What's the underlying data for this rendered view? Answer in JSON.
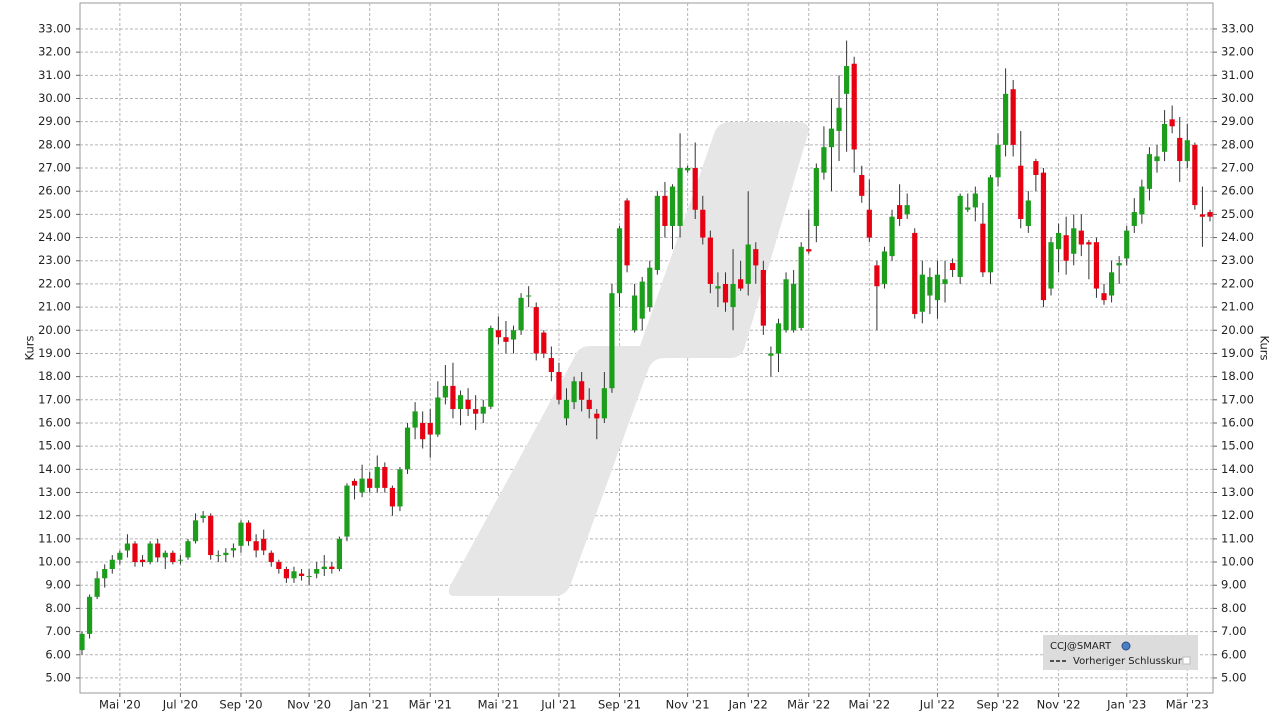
{
  "chart_data": {
    "type": "candlestick",
    "y_label": "Kurs",
    "reference_line_label": "Vorheriger Schlusskurs",
    "grid": true,
    "ylim": [
      4.35,
      34.12
    ],
    "yticks": [
      {
        "value": 5,
        "label": "5.00"
      },
      {
        "value": 6,
        "label": "6.00"
      },
      {
        "value": 7,
        "label": "7.00"
      },
      {
        "value": 8,
        "label": "8.00"
      },
      {
        "value": 9,
        "label": "9.00"
      },
      {
        "value": 10,
        "label": "10.00"
      },
      {
        "value": 11,
        "label": "11.00"
      },
      {
        "value": 12,
        "label": "12.00"
      },
      {
        "value": 13,
        "label": "13.00"
      },
      {
        "value": 14,
        "label": "14.00"
      },
      {
        "value": 15,
        "label": "15.00"
      },
      {
        "value": 16,
        "label": "16.00"
      },
      {
        "value": 17,
        "label": "17.00"
      },
      {
        "value": 18,
        "label": "18.00"
      },
      {
        "value": 19,
        "label": "19.00"
      },
      {
        "value": 20,
        "label": "20.00"
      },
      {
        "value": 21,
        "label": "21.00"
      },
      {
        "value": 22,
        "label": "22.00"
      },
      {
        "value": 23,
        "label": "23.00"
      },
      {
        "value": 24,
        "label": "24.00"
      },
      {
        "value": 25,
        "label": "25.00"
      },
      {
        "value": 26,
        "label": "26.00"
      },
      {
        "value": 27,
        "label": "27.00"
      },
      {
        "value": 28,
        "label": "28.00"
      },
      {
        "value": 29,
        "label": "29.00"
      },
      {
        "value": 30,
        "label": "30.00"
      },
      {
        "value": 31,
        "label": "31.00"
      },
      {
        "value": 32,
        "label": "32.00"
      },
      {
        "value": 33,
        "label": "33.00"
      }
    ],
    "categories": [
      null,
      null,
      null,
      null,
      null,
      "Mai '20",
      null,
      null,
      null,
      null,
      null,
      null,
      null,
      "Jul '20",
      null,
      null,
      null,
      null,
      null,
      null,
      null,
      "Sep '20",
      null,
      null,
      null,
      null,
      null,
      null,
      null,
      null,
      "Nov '20",
      null,
      null,
      null,
      null,
      null,
      null,
      null,
      "Jan '21",
      null,
      null,
      null,
      null,
      null,
      null,
      null,
      "Mär '21",
      null,
      null,
      null,
      null,
      null,
      null,
      null,
      null,
      "Mai '21",
      null,
      null,
      null,
      null,
      null,
      null,
      null,
      "Jul '21",
      null,
      null,
      null,
      null,
      null,
      null,
      null,
      "Sep '21",
      null,
      null,
      null,
      null,
      null,
      null,
      null,
      null,
      "Nov '21",
      null,
      null,
      null,
      null,
      null,
      null,
      null,
      "Jan '22",
      null,
      null,
      null,
      null,
      null,
      null,
      null,
      "Mär '22",
      null,
      null,
      null,
      null,
      null,
      null,
      null,
      "Mai '22",
      null,
      null,
      null,
      null,
      null,
      null,
      null,
      null,
      "Jul '22",
      null,
      null,
      null,
      null,
      null,
      null,
      null,
      "Sep '22",
      null,
      null,
      null,
      null,
      null,
      null,
      null,
      "Nov '22",
      null,
      null,
      null,
      null,
      null,
      null,
      null,
      null,
      "Jan '23",
      null,
      null,
      null,
      null,
      null,
      null,
      null,
      "Mär '23",
      null,
      null,
      null
    ],
    "series": [
      {
        "name": "CCJ@SMART",
        "up_color": "#1c9e1c",
        "down_color": "#e60012",
        "open": [
          6.2,
          6.9,
          8.5,
          9.3,
          9.7,
          10.1,
          10.5,
          10.8,
          10.1,
          10.0,
          10.8,
          10.2,
          10.4,
          10.1,
          10.2,
          10.9,
          11.9,
          12.0,
          10.3,
          10.3,
          10.5,
          10.7,
          11.7,
          10.9,
          11.0,
          10.4,
          10.0,
          9.7,
          9.3,
          9.5,
          9.4,
          9.5,
          9.7,
          9.8,
          9.7,
          11.1,
          13.5,
          13.0,
          13.6,
          13.2,
          14.1,
          13.2,
          12.4,
          14.0,
          15.8,
          16.0,
          16.0,
          15.5,
          17.1,
          17.6,
          16.6,
          17.0,
          16.6,
          16.4,
          16.7,
          20.0,
          19.7,
          19.6,
          20.0,
          21.5,
          21.0,
          19.9,
          18.8,
          18.2,
          16.2,
          16.9,
          17.8,
          17.0,
          16.4,
          16.2,
          17.5,
          21.6,
          25.6,
          20.0,
          20.5,
          21.0,
          22.6,
          25.8,
          24.5,
          24.5,
          26.9,
          27.0,
          25.2,
          24.0,
          21.8,
          22.0,
          21.0,
          22.2,
          22.0,
          23.5,
          22.6,
          18.9,
          19.0,
          20.0,
          20.0,
          20.1,
          23.5,
          24.5,
          26.8,
          27.9,
          28.6,
          30.2,
          31.5,
          26.7,
          25.2,
          22.8,
          22.0,
          23.2,
          25.4,
          25.0,
          24.2,
          20.8,
          21.5,
          21.3,
          22.0,
          22.9,
          22.3,
          25.2,
          25.3,
          24.6,
          22.5,
          26.6,
          28.0,
          30.4,
          27.1,
          24.5,
          27.3,
          26.8,
          21.8,
          23.5,
          24.1,
          23.3,
          24.3,
          23.8,
          23.8,
          21.6,
          21.5,
          22.8,
          23.1,
          24.5,
          25.0,
          26.1,
          27.3,
          27.7,
          29.1,
          28.3,
          27.3,
          28.0,
          25.0,
          25.1
        ],
        "high": [
          7.0,
          8.6,
          9.6,
          9.9,
          10.3,
          10.5,
          11.2,
          10.9,
          10.3,
          10.9,
          11.0,
          10.5,
          10.5,
          10.3,
          11.0,
          12.1,
          12.2,
          12.1,
          10.5,
          10.6,
          10.8,
          11.8,
          11.8,
          11.2,
          11.4,
          10.5,
          10.1,
          9.8,
          9.8,
          9.7,
          9.7,
          10.0,
          10.3,
          10.0,
          11.1,
          13.4,
          13.6,
          14.2,
          13.9,
          14.6,
          14.3,
          13.3,
          14.1,
          16.0,
          16.9,
          16.5,
          16.6,
          17.8,
          18.5,
          18.6,
          17.4,
          17.5,
          17.2,
          17.0,
          20.2,
          20.6,
          20.4,
          20.2,
          21.6,
          21.9,
          21.2,
          20.0,
          19.3,
          18.6,
          17.5,
          18.0,
          18.2,
          17.5,
          16.6,
          18.2,
          22.0,
          24.5,
          25.7,
          22.0,
          22.3,
          23.0,
          26.0,
          26.4,
          26.3,
          28.5,
          27.1,
          28.1,
          25.8,
          24.3,
          22.5,
          22.5,
          23.5,
          23.0,
          26.0,
          23.8,
          23.0,
          19.3,
          20.5,
          22.5,
          22.6,
          23.8,
          25.2,
          27.2,
          28.8,
          30.0,
          31.0,
          32.5,
          31.8,
          27.1,
          26.5,
          23.0,
          23.6,
          25.2,
          26.3,
          25.9,
          24.4,
          23.0,
          22.7,
          23.0,
          23.0,
          23.1,
          25.9,
          25.9,
          26.2,
          25.5,
          26.7,
          28.5,
          31.3,
          30.8,
          28.6,
          26.0,
          27.4,
          27.0,
          24.0,
          24.6,
          24.9,
          25.0,
          25.0,
          23.9,
          24.0,
          22.0,
          23.0,
          23.2,
          24.5,
          25.7,
          26.5,
          27.9,
          28.0,
          29.5,
          29.7,
          29.2,
          28.9,
          28.1,
          26.2,
          25.2
        ],
        "low": [
          6.0,
          6.7,
          8.4,
          8.9,
          9.5,
          9.9,
          10.2,
          9.8,
          9.8,
          9.9,
          10.0,
          9.7,
          9.9,
          9.9,
          10.1,
          10.8,
          11.7,
          10.1,
          10.0,
          10.0,
          10.2,
          10.4,
          10.7,
          10.2,
          10.3,
          9.8,
          9.5,
          9.1,
          9.1,
          9.2,
          9.0,
          9.3,
          9.4,
          9.5,
          9.6,
          10.9,
          12.7,
          12.8,
          13.0,
          13.0,
          13.0,
          12.0,
          12.2,
          13.8,
          15.3,
          14.9,
          14.5,
          15.4,
          16.8,
          16.2,
          15.9,
          16.3,
          15.7,
          16.0,
          16.6,
          19.4,
          19.0,
          19.0,
          19.8,
          21.0,
          18.7,
          18.8,
          17.8,
          16.8,
          15.9,
          16.6,
          16.5,
          16.2,
          15.3,
          16.0,
          17.3,
          21.0,
          22.5,
          19.9,
          20.0,
          20.8,
          22.4,
          24.0,
          23.5,
          24.0,
          26.8,
          24.8,
          23.7,
          21.6,
          21.0,
          20.8,
          20.0,
          21.7,
          21.5,
          22.0,
          19.8,
          18.0,
          18.2,
          19.9,
          19.9,
          20.0,
          23.3,
          23.8,
          26.5,
          26.0,
          27.3,
          27.7,
          26.8,
          25.5,
          23.8,
          20.0,
          21.8,
          23.0,
          24.5,
          24.8,
          20.5,
          20.3,
          20.7,
          20.5,
          21.2,
          22.3,
          22.0,
          25.1,
          24.7,
          22.3,
          22.0,
          26.2,
          27.5,
          27.5,
          24.4,
          24.2,
          26.0,
          21.0,
          21.5,
          22.5,
          22.4,
          22.8,
          23.2,
          22.2,
          21.4,
          21.1,
          21.2,
          22.0,
          22.8,
          24.2,
          24.6,
          25.6,
          26.8,
          27.3,
          28.5,
          26.4,
          27.0,
          25.2,
          23.6,
          24.7
        ],
        "close": [
          6.9,
          8.5,
          9.3,
          9.7,
          10.1,
          10.4,
          10.8,
          10.0,
          10.0,
          10.8,
          10.2,
          10.4,
          10.0,
          10.1,
          10.9,
          11.8,
          12.0,
          10.3,
          10.3,
          10.4,
          10.6,
          11.7,
          10.9,
          10.5,
          10.5,
          10.0,
          9.7,
          9.3,
          9.6,
          9.4,
          9.4,
          9.7,
          9.8,
          9.7,
          11.0,
          13.3,
          13.3,
          13.6,
          13.2,
          14.1,
          13.2,
          12.4,
          14.0,
          15.8,
          16.5,
          15.3,
          15.5,
          17.1,
          17.6,
          16.6,
          17.2,
          16.6,
          16.4,
          16.7,
          20.1,
          19.7,
          19.5,
          20.0,
          21.4,
          21.5,
          19.0,
          19.0,
          18.2,
          17.0,
          17.0,
          17.8,
          17.0,
          16.6,
          16.2,
          17.5,
          21.6,
          24.4,
          22.8,
          21.5,
          22.1,
          22.7,
          25.8,
          24.5,
          26.2,
          27.0,
          27.0,
          25.2,
          24.0,
          22.0,
          21.9,
          21.2,
          22.0,
          21.8,
          23.7,
          22.8,
          20.2,
          19.0,
          20.3,
          22.2,
          22.0,
          23.6,
          23.4,
          27.0,
          27.9,
          28.7,
          29.6,
          31.4,
          27.8,
          25.8,
          24.0,
          21.9,
          23.4,
          24.9,
          24.8,
          25.4,
          20.7,
          22.4,
          22.3,
          22.4,
          22.2,
          22.6,
          25.8,
          25.3,
          25.9,
          22.5,
          26.6,
          28.0,
          30.2,
          28.0,
          24.8,
          25.6,
          26.7,
          21.3,
          23.8,
          24.2,
          23.0,
          24.4,
          23.7,
          23.7,
          21.8,
          21.3,
          22.5,
          22.9,
          24.3,
          25.1,
          26.2,
          27.6,
          27.5,
          28.9,
          28.8,
          27.3,
          28.2,
          25.4,
          24.9,
          24.9
        ]
      }
    ]
  }
}
